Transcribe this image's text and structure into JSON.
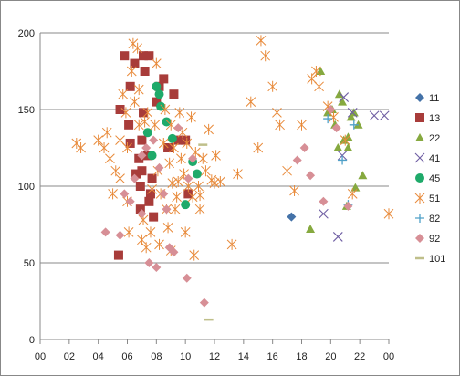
{
  "chart_data": {
    "type": "scatter",
    "title": "",
    "xlabel": "",
    "ylabel": "",
    "x_tick_labels": [
      "00",
      "02",
      "04",
      "06",
      "08",
      "10",
      "12",
      "14",
      "16",
      "18",
      "20",
      "22",
      "00"
    ],
    "x_range": [
      0,
      24
    ],
    "ylim": [
      0,
      200
    ],
    "y_ticks": [
      0,
      50,
      100,
      150,
      200
    ],
    "grid": "horizontal",
    "legend": "right",
    "series": [
      {
        "name": "11",
        "marker": "diamond",
        "color": "#4472a8",
        "points": [
          [
            17.3,
            80
          ]
        ]
      },
      {
        "name": "13",
        "marker": "square",
        "color": "#a83c3a",
        "points": [
          [
            5.5,
            150
          ],
          [
            5.8,
            185
          ],
          [
            6.1,
            140
          ],
          [
            6.2,
            165
          ],
          [
            6.5,
            180
          ],
          [
            6.6,
            108
          ],
          [
            6.8,
            118
          ],
          [
            6.9,
            100
          ],
          [
            6.9,
            85
          ],
          [
            7.0,
            130
          ],
          [
            7.0,
            110
          ],
          [
            7.1,
            185
          ],
          [
            7.2,
            175
          ],
          [
            7.4,
            120
          ],
          [
            7.5,
            90
          ],
          [
            7.6,
            95
          ],
          [
            7.8,
            80
          ],
          [
            8.0,
            155
          ],
          [
            8.2,
            165
          ],
          [
            8.5,
            170
          ],
          [
            8.8,
            125
          ],
          [
            9.2,
            160
          ],
          [
            9.5,
            130
          ],
          [
            10.0,
            130
          ],
          [
            10.2,
            95
          ],
          [
            5.4,
            55
          ],
          [
            6.2,
            128
          ],
          [
            7.5,
            185
          ],
          [
            7.1,
            148
          ],
          [
            7.7,
            105
          ]
        ]
      },
      {
        "name": "22",
        "marker": "triangle",
        "color": "#86a93f",
        "points": [
          [
            18.6,
            72
          ],
          [
            19.3,
            175
          ],
          [
            19.8,
            148
          ],
          [
            20.1,
            150
          ],
          [
            20.3,
            140
          ],
          [
            20.6,
            160
          ],
          [
            20.8,
            155
          ],
          [
            20.9,
            130
          ],
          [
            21.2,
            132
          ],
          [
            21.4,
            145
          ],
          [
            21.6,
            148
          ],
          [
            21.9,
            140
          ],
          [
            22.2,
            107
          ],
          [
            21.2,
            125
          ],
          [
            20.5,
            125
          ],
          [
            21.1,
            87
          ],
          [
            21.7,
            99
          ]
        ]
      },
      {
        "name": "41",
        "marker": "x",
        "color": "#6f5ea3",
        "points": [
          [
            19.5,
            82
          ],
          [
            20.5,
            67
          ],
          [
            20.9,
            158
          ],
          [
            21.5,
            148
          ],
          [
            23.0,
            146
          ],
          [
            23.7,
            146
          ],
          [
            20.8,
            120
          ]
        ]
      },
      {
        "name": "45",
        "marker": "circle",
        "color": "#1faa6a",
        "points": [
          [
            7.4,
            135
          ],
          [
            7.7,
            120
          ],
          [
            8.0,
            165
          ],
          [
            8.2,
            160
          ],
          [
            8.3,
            152
          ],
          [
            8.7,
            142
          ],
          [
            9.1,
            131
          ],
          [
            10.0,
            88
          ],
          [
            10.5,
            116
          ],
          [
            10.8,
            108
          ]
        ]
      },
      {
        "name": "51",
        "marker": "asterisk",
        "color": "#e88a3a",
        "points": [
          [
            2.5,
            128
          ],
          [
            2.8,
            125
          ],
          [
            4.0,
            130
          ],
          [
            4.4,
            125
          ],
          [
            4.6,
            135
          ],
          [
            4.8,
            118
          ],
          [
            5.0,
            95
          ],
          [
            5.2,
            110
          ],
          [
            5.5,
            130
          ],
          [
            5.7,
            160
          ],
          [
            5.9,
            148
          ],
          [
            6.0,
            90
          ],
          [
            6.1,
            70
          ],
          [
            6.3,
            175
          ],
          [
            6.4,
            193
          ],
          [
            6.5,
            155
          ],
          [
            6.7,
            190
          ],
          [
            6.8,
            163
          ],
          [
            7.0,
            65
          ],
          [
            7.1,
            78
          ],
          [
            7.2,
            142
          ],
          [
            7.4,
            148
          ],
          [
            7.6,
            70
          ],
          [
            7.7,
            98
          ],
          [
            7.9,
            140
          ],
          [
            8.0,
            180
          ],
          [
            8.1,
            110
          ],
          [
            8.2,
            62
          ],
          [
            8.3,
            95
          ],
          [
            8.5,
            128
          ],
          [
            8.6,
            150
          ],
          [
            8.7,
            85
          ],
          [
            8.8,
            73
          ],
          [
            8.9,
            115
          ],
          [
            9.0,
            140
          ],
          [
            9.1,
            102
          ],
          [
            9.2,
            125
          ],
          [
            9.3,
            85
          ],
          [
            9.4,
            93
          ],
          [
            9.5,
            103
          ],
          [
            9.6,
            148
          ],
          [
            9.7,
            118
          ],
          [
            9.8,
            135
          ],
          [
            9.9,
            108
          ],
          [
            10.1,
            128
          ],
          [
            10.2,
            100
          ],
          [
            10.4,
            145
          ],
          [
            10.5,
            93
          ],
          [
            10.6,
            55
          ],
          [
            10.7,
            122
          ],
          [
            10.9,
            100
          ],
          [
            11.0,
            85
          ],
          [
            11.2,
            118
          ],
          [
            11.4,
            110
          ],
          [
            11.6,
            137
          ],
          [
            11.8,
            104
          ],
          [
            12.0,
            102
          ],
          [
            12.1,
            120
          ],
          [
            12.4,
            103
          ],
          [
            13.2,
            62
          ],
          [
            13.6,
            108
          ],
          [
            15.0,
            125
          ],
          [
            15.2,
            195
          ],
          [
            15.5,
            185
          ],
          [
            16.0,
            165
          ],
          [
            16.3,
            148
          ],
          [
            16.5,
            140
          ],
          [
            17.0,
            110
          ],
          [
            17.5,
            97
          ],
          [
            18.0,
            140
          ],
          [
            18.7,
            170
          ],
          [
            19.0,
            175
          ],
          [
            19.2,
            165
          ],
          [
            19.8,
            152
          ],
          [
            20.2,
            145
          ],
          [
            21.0,
            130
          ],
          [
            21.5,
            95
          ],
          [
            24.0,
            82
          ],
          [
            5.5,
            105
          ],
          [
            6.0,
            125
          ],
          [
            6.8,
            140
          ],
          [
            7.3,
            60
          ],
          [
            9.0,
            58
          ],
          [
            10.0,
            70
          ],
          [
            11.0,
            94
          ],
          [
            14.5,
            155
          ]
        ]
      },
      {
        "name": "82",
        "marker": "plus",
        "color": "#4fa0c8",
        "points": [
          [
            19.8,
            144
          ],
          [
            20.8,
            117
          ],
          [
            21.6,
            140
          ],
          [
            21.2,
            88
          ]
        ]
      },
      {
        "name": "92",
        "marker": "diamond",
        "color": "#d78f96",
        "points": [
          [
            4.5,
            70
          ],
          [
            5.5,
            68
          ],
          [
            5.8,
            95
          ],
          [
            6.2,
            90
          ],
          [
            6.5,
            105
          ],
          [
            7.0,
            120
          ],
          [
            7.3,
            125
          ],
          [
            7.5,
            50
          ],
          [
            7.8,
            130
          ],
          [
            8.0,
            47
          ],
          [
            8.2,
            112
          ],
          [
            8.5,
            95
          ],
          [
            8.7,
            85
          ],
          [
            8.9,
            60
          ],
          [
            9.2,
            57
          ],
          [
            9.5,
            138
          ],
          [
            10.2,
            105
          ],
          [
            10.5,
            118
          ],
          [
            10.1,
            40
          ],
          [
            11.3,
            24
          ],
          [
            17.7,
            117
          ],
          [
            18.2,
            125
          ],
          [
            18.6,
            107
          ],
          [
            19.5,
            90
          ],
          [
            20.0,
            150
          ],
          [
            20.4,
            138
          ],
          [
            21.2,
            87
          ],
          [
            7.0,
            82
          ]
        ]
      },
      {
        "name": "101",
        "marker": "dash",
        "color": "#bfbf8a",
        "points": [
          [
            11.6,
            13
          ],
          [
            11.2,
            127
          ]
        ]
      }
    ]
  },
  "colors": {
    "axis": "#888888",
    "grid": "#888888",
    "text": "#222222"
  }
}
